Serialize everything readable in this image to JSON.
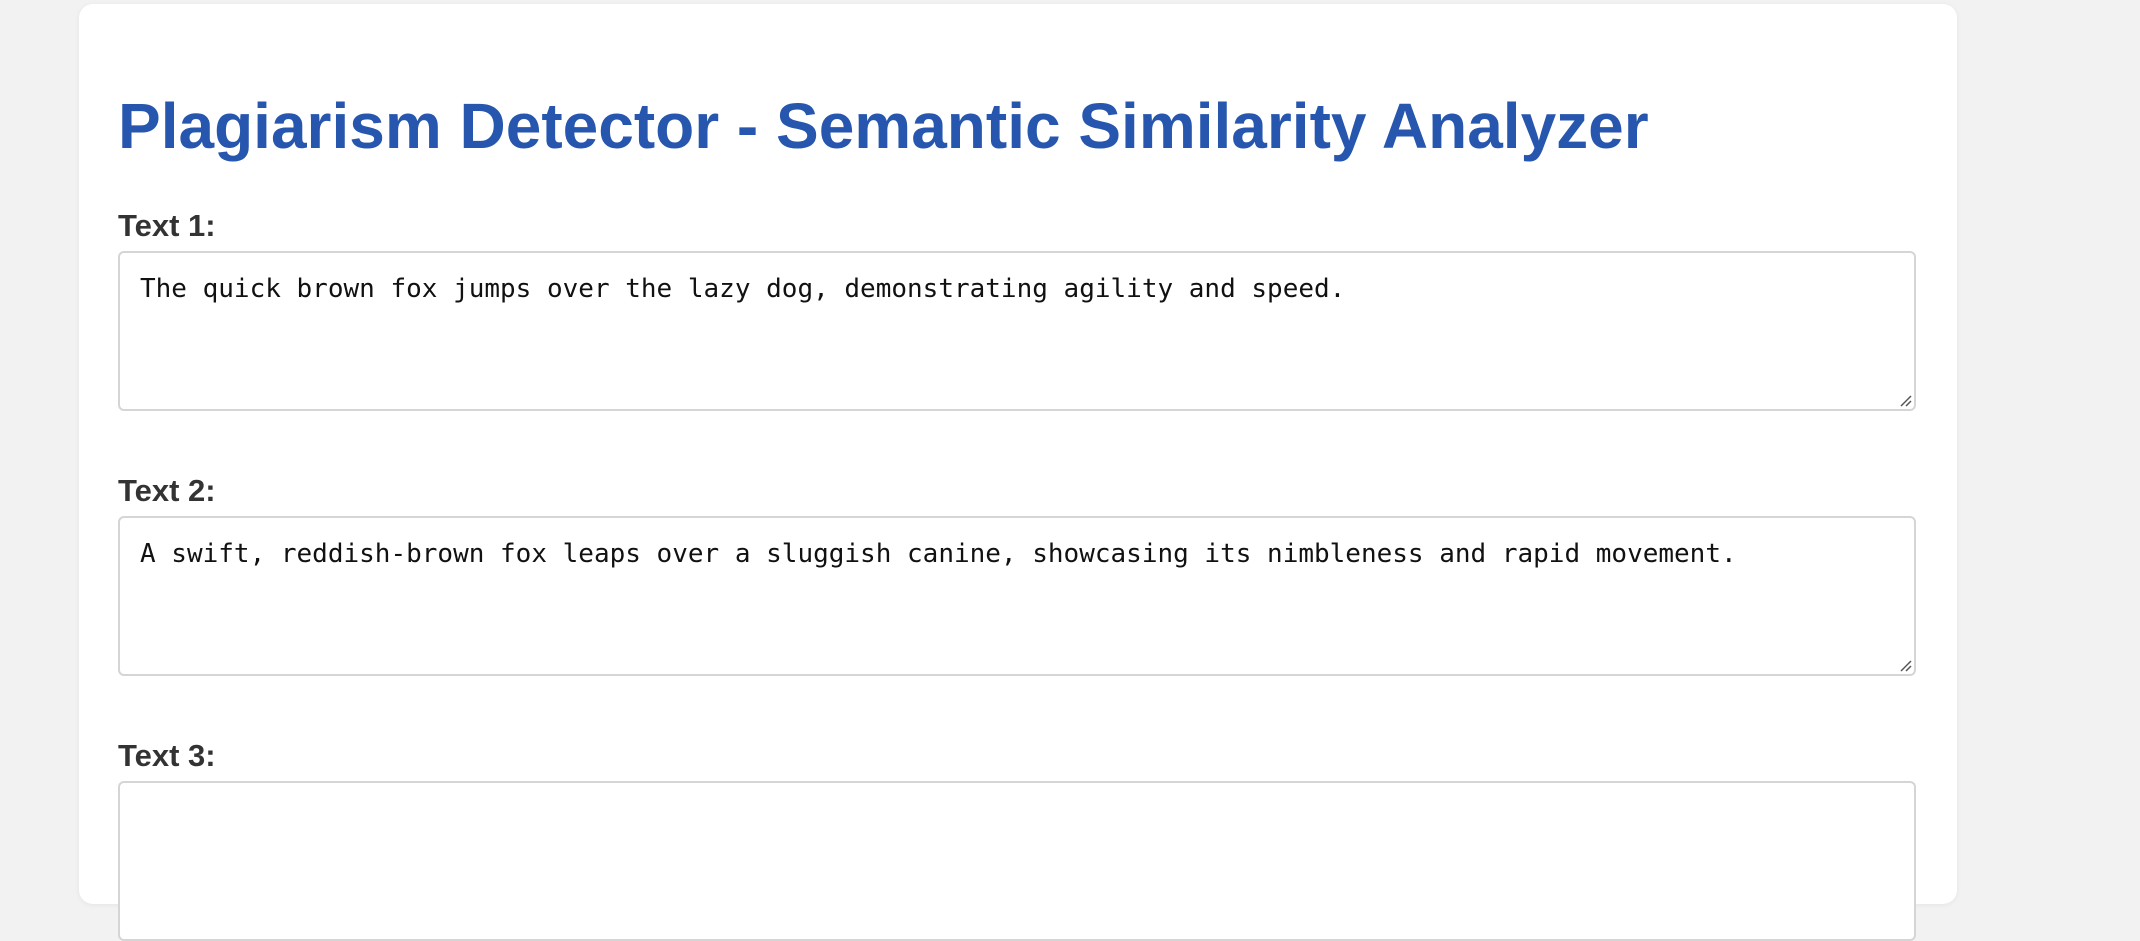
{
  "page": {
    "title": "Plagiarism Detector - Semantic Similarity Analyzer"
  },
  "fields": [
    {
      "label": "Text 1:",
      "value": "The quick brown fox jumps over the lazy dog, demonstrating agility and speed."
    },
    {
      "label": "Text 2:",
      "value": "A swift, reddish-brown fox leaps over a sluggish canine, showcasing its nimbleness and rapid movement."
    },
    {
      "label": "Text 3:",
      "value": ""
    }
  ],
  "colors": {
    "title": "#2756ae",
    "label": "#333333",
    "background": "#f2f2f2",
    "card": "#ffffff",
    "border": "#d5d5d5"
  }
}
